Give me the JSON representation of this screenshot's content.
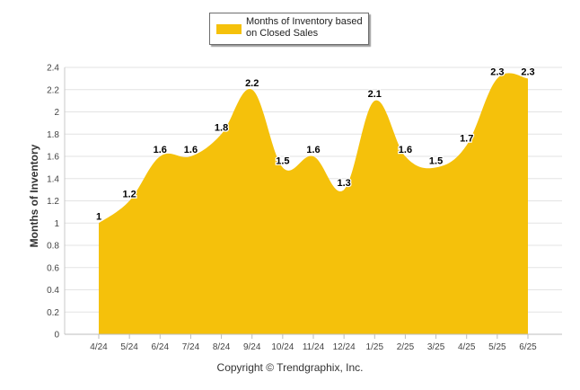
{
  "legend": {
    "label": "Months of Inventory based on Closed Sales",
    "color": "#f5c10b"
  },
  "footer": {
    "copyright": "Copyright © Trendgraphix, Inc."
  },
  "chart_data": {
    "type": "area",
    "title": "",
    "xlabel": "",
    "ylabel": "Months of Inventory",
    "categories": [
      "4/24",
      "5/24",
      "6/24",
      "7/24",
      "8/24",
      "9/24",
      "10/24",
      "11/24",
      "12/24",
      "1/25",
      "2/25",
      "3/25",
      "4/25",
      "5/25",
      "6/25"
    ],
    "series": [
      {
        "name": "Months of Inventory based on Closed Sales",
        "values": [
          1,
          1.2,
          1.6,
          1.6,
          1.8,
          2.2,
          1.5,
          1.6,
          1.3,
          2.1,
          1.6,
          1.5,
          1.7,
          2.3,
          2.3
        ],
        "labels": [
          "1",
          "1.2",
          "1.6",
          "1.6",
          "1.8",
          "2.2",
          "1.5",
          "1.6",
          "1.3",
          "2.1",
          "1.6",
          "1.5",
          "1.7",
          "2.3",
          "2.3"
        ],
        "color": "#f5c10b"
      }
    ],
    "yticks": [
      0,
      0.2,
      0.4,
      0.6,
      0.8,
      1,
      1.2,
      1.4,
      1.6,
      1.8,
      2,
      2.2,
      2.4
    ],
    "yticklabels": [
      "0",
      "0.2",
      "0.4",
      "0.6",
      "0.8",
      "1",
      "1.2",
      "1.4",
      "1.6",
      "1.8",
      "2",
      "2.2",
      "2.4"
    ],
    "ylim": [
      0,
      2.4
    ],
    "grid": true,
    "legend_position": "top-center"
  }
}
